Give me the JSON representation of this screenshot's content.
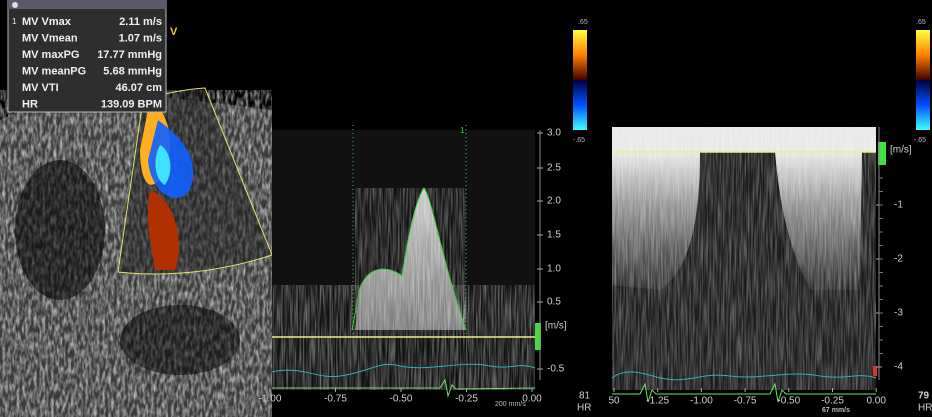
{
  "measurements": {
    "marker": "1",
    "rows": [
      {
        "label": "MV Vmax",
        "value": "2.11 m/s"
      },
      {
        "label": "MV Vmean",
        "value": "1.07 m/s"
      },
      {
        "label": "MV maxPG",
        "value": "17.77 mmHg"
      },
      {
        "label": "MV meanPG",
        "value": "5.68 mmHg"
      },
      {
        "label": "MV VTI",
        "value": "46.07 cm"
      },
      {
        "label": "HR",
        "value": "139.09 BPM"
      }
    ]
  },
  "image_labels": {
    "sector_marker": "V"
  },
  "spectral_left": {
    "scale_top": ".65",
    "scale_bottom": "-.65",
    "unit": "[m/s]",
    "y_ticks": [
      "3.0",
      "2.5",
      "2.0",
      "1.5",
      "1.0",
      "0.5",
      "-0.5"
    ],
    "x_ticks": [
      "-1.00",
      "-0.75",
      "-0.50",
      "-0.25",
      "0.00"
    ],
    "sweep_speed": "200 mm/s",
    "heart_rate": "81",
    "heart_rate_label": "HR",
    "cursor_label": "1"
  },
  "spectral_right": {
    "scale_top": ".65",
    "scale_bottom": "-.65",
    "unit": "[m/s]",
    "y_ticks": [
      "-1",
      "-2",
      "-3",
      "-4"
    ],
    "x_ticks": [
      "50",
      "-1.25",
      "-1.00",
      "-0.75",
      "-0.50",
      "-0.25",
      "0.00"
    ],
    "sweep_speed": "67 mm/s",
    "heart_rate": "79",
    "heart_rate_label": "HR"
  }
}
